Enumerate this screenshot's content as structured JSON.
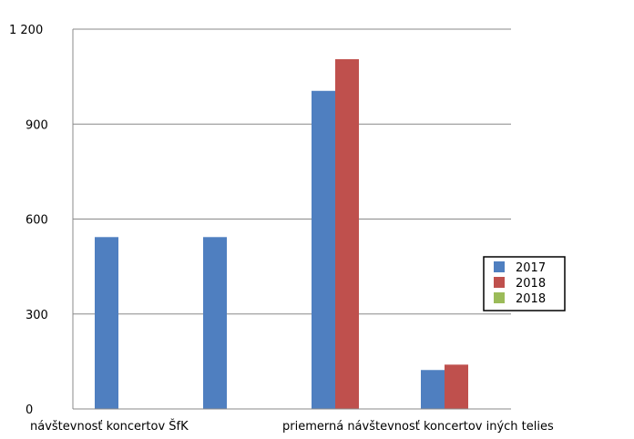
{
  "chart_data": {
    "type": "bar",
    "title": "",
    "xlabel": "",
    "ylabel": "",
    "ylim": [
      0,
      1200
    ],
    "yticks": [
      0,
      300,
      600,
      900,
      1200
    ],
    "ytick_labels": [
      "0",
      "300",
      "600",
      "900",
      "1 200"
    ],
    "grid": true,
    "legend_position": "right",
    "categories": [
      "návštevnosť koncertov ŠfK",
      "priemerná návštevnosť koncertov iných telies"
    ],
    "bars": [
      {
        "series": 0,
        "slot": 0,
        "value": 543
      },
      {
        "series": 0,
        "slot": 1,
        "value": 543
      },
      {
        "series": 0,
        "slot": 2,
        "value": 1005
      },
      {
        "series": 1,
        "slot": 2,
        "value": 1105
      },
      {
        "series": 0,
        "slot": 3,
        "value": 123
      },
      {
        "series": 1,
        "slot": 3,
        "value": 140
      }
    ],
    "series": [
      {
        "name": "2017",
        "color": "#4f7fc0"
      },
      {
        "name": "2018",
        "color": "#bf504d"
      },
      {
        "name": "2018",
        "color": "#9bbb59"
      }
    ]
  }
}
